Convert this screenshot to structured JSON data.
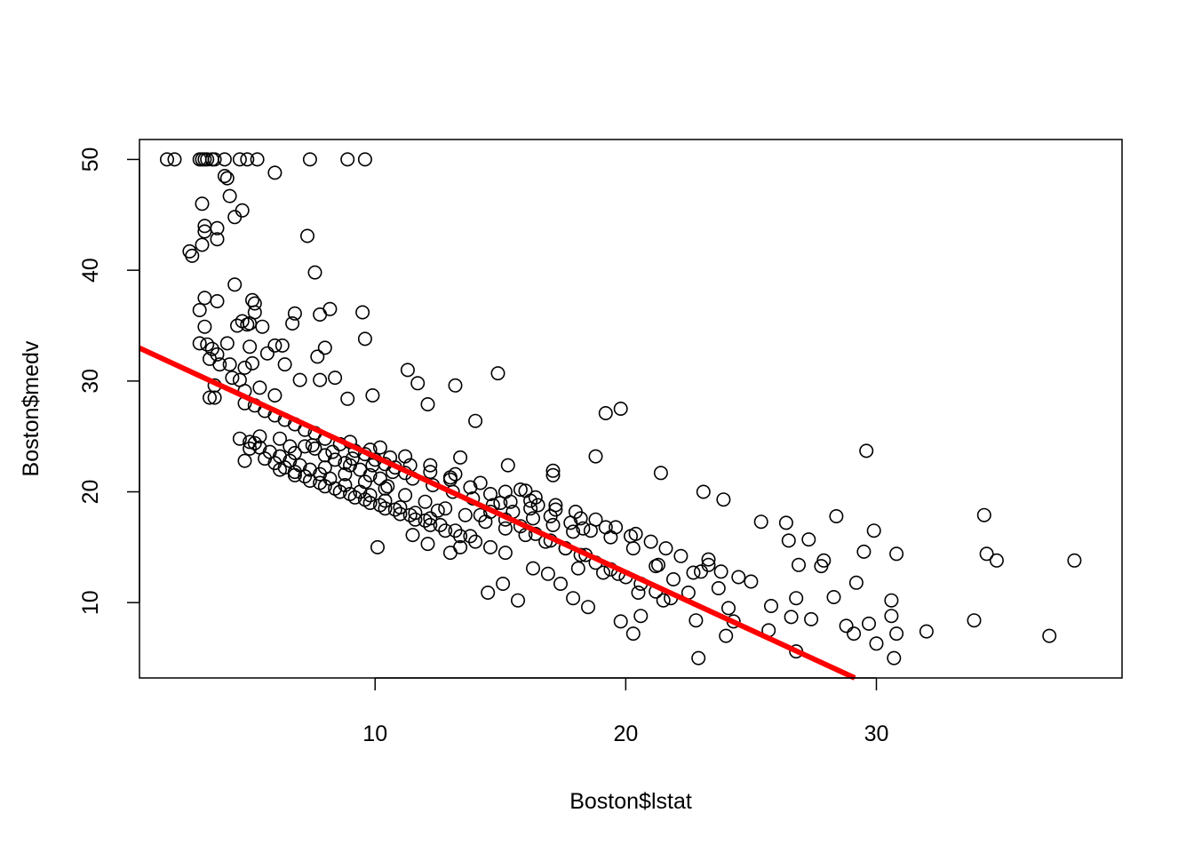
{
  "chart_data": {
    "type": "scatter",
    "title": "",
    "xlabel": "Boston$lstat",
    "ylabel": "Boston$medv",
    "xlim": [
      0.6,
      39.8
    ],
    "ylim": [
      3.2,
      51.8
    ],
    "x_ticks": [
      10,
      20,
      30
    ],
    "y_ticks": [
      10,
      20,
      30,
      40,
      50
    ],
    "grid": false,
    "legend": "none",
    "point_color": "#000000",
    "line_color": "#ff0000",
    "series": [
      {
        "type": "scatter",
        "x": [
          1.7,
          2.0,
          3.0,
          3.1,
          3.2,
          3.3,
          3.5,
          3.6,
          4.0,
          4.6,
          4.9,
          5.3,
          7.4,
          8.9,
          9.6,
          6.0,
          3.1,
          4.1,
          4.0,
          4.2,
          3.2,
          3.2,
          3.1,
          3.7,
          3.7,
          4.4,
          2.6,
          2.7,
          4.7,
          3.0,
          3.2,
          3.7,
          4.4,
          7.3,
          7.6,
          8.2,
          6.8,
          7.8,
          9.5,
          9.6,
          5.1,
          5.2,
          5.2,
          4.7,
          4.9,
          5.0,
          6.7,
          4.5,
          5.5,
          3.0,
          3.4,
          3.3,
          5.0,
          4.1,
          3.5,
          3.7,
          3.8,
          6.0,
          6.3,
          5.7,
          6.4,
          7.7,
          8.0,
          3.2,
          3.6,
          4.3,
          4.6,
          4.8,
          5.1,
          3.6,
          4.2,
          4.8,
          7.0,
          7.8,
          8.4,
          8.9,
          5.4,
          3.4,
          6.0,
          9.9,
          4.6,
          4.8,
          5.0,
          5.2,
          5.4,
          6.2,
          6.6,
          6.8,
          7.2,
          7.6,
          8.0,
          8.4,
          8.8,
          9.0,
          9.4,
          9.8,
          10.2,
          4.8,
          5.2,
          5.6,
          6.0,
          6.4,
          6.8,
          7.2,
          7.6,
          8.0,
          8.6,
          9.2,
          9.6,
          10.0,
          10.4,
          10.8,
          11.2,
          5.0,
          5.4,
          5.8,
          6.2,
          6.6,
          7.0,
          7.4,
          7.8,
          8.2,
          8.8,
          9.4,
          9.8,
          10.4,
          11.0,
          11.6,
          12.2,
          5.6,
          6.0,
          6.4,
          6.8,
          7.2,
          7.8,
          8.4,
          9.0,
          9.6,
          10.2,
          10.8,
          11.4,
          12.0,
          12.6,
          13.2,
          13.8,
          6.2,
          6.8,
          7.4,
          8.0,
          8.6,
          9.2,
          9.8,
          10.4,
          11.0,
          11.6,
          12.2,
          12.8,
          13.4,
          14.0,
          14.6,
          15.2,
          8.0,
          8.8,
          9.6,
          10.4,
          11.2,
          12.0,
          12.8,
          13.6,
          14.4,
          15.2,
          16.0,
          16.8,
          17.6,
          18.4,
          9.0,
          9.8,
          10.6,
          11.4,
          12.2,
          13.0,
          13.8,
          14.6,
          15.4,
          16.2,
          17.0,
          17.8,
          18.6,
          19.4,
          10.2,
          11.2,
          12.2,
          13.2,
          14.2,
          15.2,
          16.2,
          17.2,
          18.2,
          19.2,
          20.2,
          11.3,
          11.7,
          12.1,
          13.2,
          14.9,
          14.0,
          13.4,
          19.2,
          19.8,
          18.8,
          21.4,
          10.1,
          11.5,
          12.1,
          13.0,
          13.4,
          14.5,
          15.1,
          15.7,
          16.3,
          16.9,
          17.4,
          17.9,
          18.5,
          19.1,
          14.6,
          15.2,
          15.8,
          16.4,
          17.0,
          17.6,
          18.2,
          18.8,
          19.4,
          20.0,
          20.6,
          21.2,
          21.8,
          15.8,
          16.4,
          17.2,
          18.0,
          18.8,
          19.6,
          20.4,
          21.0,
          21.6,
          22.2,
          15.3,
          16.0,
          17.1,
          20.3,
          20.6,
          21.2,
          21.3,
          22.7,
          23.0,
          23.1,
          17.1,
          18.1,
          19.8,
          20.3,
          21.5,
          22.8,
          23.3,
          23.7,
          24.1,
          24.5,
          25.0,
          23.3,
          23.9,
          24.0,
          24.3,
          25.4,
          25.7,
          26.4,
          26.5,
          26.6,
          26.8,
          26.9,
          27.3,
          27.4,
          27.8,
          27.9,
          28.3,
          28.4,
          29.1,
          29.2,
          29.5,
          29.6,
          29.7,
          29.9,
          30.0,
          30.6,
          30.6,
          30.7,
          30.8,
          30.8,
          32.0,
          33.9,
          34.3,
          34.4,
          34.8,
          36.9,
          37.9,
          22.9,
          26.8,
          10.5,
          12.5,
          13.0,
          14.2,
          15.0,
          16.5,
          18.3,
          19.7,
          20.5,
          21.9,
          22.5,
          23.8,
          25.8,
          28.8,
          7.5,
          8.3,
          9.1,
          9.9,
          10.7,
          11.5,
          12.3,
          13.1,
          13.9,
          14.7,
          15.5,
          16.3,
          17.1,
          17.9
        ],
        "y": [
          50,
          50,
          50,
          50,
          50,
          50,
          50,
          50,
          50,
          50,
          50,
          50,
          50,
          50,
          50,
          48.8,
          46.0,
          48.3,
          48.5,
          46.7,
          44.0,
          43.5,
          42.3,
          42.8,
          43.8,
          44.8,
          41.7,
          41.3,
          45.4,
          36.4,
          37.5,
          37.2,
          38.7,
          43.1,
          39.8,
          36.5,
          36.1,
          36.0,
          36.2,
          33.8,
          37.3,
          37.0,
          36.2,
          35.4,
          35.1,
          35.2,
          35.2,
          35.0,
          34.9,
          33.4,
          32.0,
          33.3,
          33.1,
          33.4,
          32.9,
          32.4,
          31.5,
          33.2,
          33.2,
          32.5,
          31.5,
          32.2,
          33.0,
          34.9,
          29.6,
          30.3,
          30.1,
          31.2,
          31.6,
          28.5,
          31.5,
          29.1,
          30.1,
          30.1,
          30.3,
          28.4,
          29.4,
          28.5,
          28.7,
          28.7,
          24.8,
          22.8,
          23.9,
          24.4,
          25.0,
          24.8,
          24.1,
          23.5,
          24.1,
          23.9,
          23.3,
          22.9,
          22.6,
          22.4,
          22.0,
          21.5,
          21.2,
          28.0,
          27.8,
          27.3,
          26.9,
          26.5,
          26.1,
          25.6,
          25.3,
          24.8,
          24.3,
          23.7,
          23.4,
          22.9,
          22.5,
          22.2,
          21.7,
          24.5,
          24.0,
          23.6,
          23.2,
          22.8,
          22.4,
          22.0,
          21.6,
          21.2,
          20.6,
          20.0,
          19.7,
          19.2,
          18.6,
          18.1,
          17.6,
          23.0,
          22.6,
          22.2,
          21.8,
          21.4,
          20.8,
          20.3,
          19.8,
          19.3,
          18.8,
          18.4,
          17.9,
          17.4,
          17.0,
          16.5,
          16.0,
          22.0,
          21.5,
          21.0,
          20.5,
          20.0,
          19.5,
          19.0,
          18.5,
          18.0,
          17.5,
          17.0,
          16.5,
          16.0,
          15.5,
          15.0,
          14.5,
          22.2,
          21.6,
          20.9,
          20.3,
          19.7,
          19.1,
          18.5,
          17.9,
          17.3,
          16.7,
          16.1,
          15.5,
          14.9,
          14.3,
          24.5,
          23.8,
          23.1,
          22.4,
          21.8,
          21.1,
          20.4,
          19.8,
          19.1,
          18.5,
          17.8,
          17.2,
          16.5,
          15.9,
          24.0,
          23.2,
          22.4,
          21.6,
          20.8,
          20.0,
          19.2,
          18.4,
          17.6,
          16.8,
          16.0,
          31.0,
          29.8,
          27.9,
          29.6,
          30.7,
          26.4,
          23.1,
          27.1,
          27.5,
          23.2,
          21.7,
          15.0,
          16.1,
          15.3,
          14.5,
          15.0,
          10.9,
          11.7,
          10.2,
          13.1,
          12.6,
          11.7,
          10.4,
          9.6,
          12.7,
          18.2,
          17.5,
          16.9,
          16.2,
          15.6,
          14.9,
          14.3,
          13.6,
          13.0,
          12.3,
          11.7,
          11.0,
          10.4,
          20.2,
          19.5,
          18.8,
          18.2,
          17.5,
          16.8,
          16.2,
          15.5,
          14.9,
          14.2,
          22.4,
          20.1,
          21.9,
          14.9,
          8.8,
          13.3,
          13.4,
          12.7,
          12.8,
          20.0,
          21.5,
          13.1,
          8.3,
          7.2,
          10.2,
          8.4,
          13.9,
          11.3,
          9.5,
          12.3,
          11.9,
          13.4,
          19.3,
          7.0,
          8.3,
          17.3,
          7.5,
          17.2,
          15.6,
          8.7,
          10.4,
          13.4,
          15.7,
          8.5,
          13.3,
          13.8,
          10.5,
          17.8,
          7.2,
          11.8,
          14.6,
          23.7,
          8.1,
          16.5,
          6.3,
          10.2,
          8.8,
          5.0,
          14.4,
          7.2,
          7.4,
          8.4,
          17.9,
          14.4,
          13.8,
          7.0,
          13.8,
          5.0,
          5.6,
          20.5,
          18.3,
          21.3,
          17.9,
          19.0,
          18.8,
          16.7,
          12.6,
          10.9,
          12.1,
          10.9,
          12.8,
          9.7,
          7.9,
          24.2,
          23.6,
          23.0,
          22.4,
          21.8,
          21.2,
          20.6,
          20.0,
          19.4,
          18.8,
          18.2,
          17.6,
          17.0,
          16.4
        ]
      },
      {
        "type": "line",
        "name": "",
        "x": [
          0.6,
          29.14
        ],
        "y": [
          32.98,
          3.2
        ]
      }
    ]
  }
}
